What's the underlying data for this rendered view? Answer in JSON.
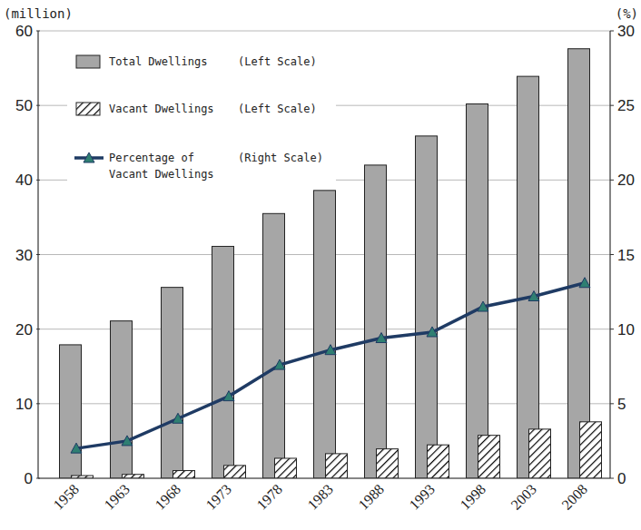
{
  "chart_data": {
    "type": "bar",
    "y_label": "(million)",
    "y2_label": "(%)",
    "categories": [
      "1958",
      "1963",
      "1968",
      "1973",
      "1978",
      "1983",
      "1988",
      "1993",
      "1998",
      "2003",
      "2008"
    ],
    "series": [
      {
        "name": "Total Dwellings",
        "type": "bar",
        "color": "#a6a6a6",
        "values": [
          17.9,
          21.1,
          25.6,
          31.1,
          35.5,
          38.6,
          42.0,
          45.9,
          50.2,
          53.9,
          57.6
        ]
      },
      {
        "name": "Vacant  Dwellings",
        "type": "bar",
        "color": "#000000",
        "line_style": "hatched",
        "values": [
          0.36,
          0.52,
          1.03,
          1.72,
          2.68,
          3.3,
          3.94,
          4.48,
          5.76,
          6.59,
          7.57
        ]
      },
      {
        "name": "Percentage of Vacant  Dwellings",
        "type": "line",
        "axis": "y2",
        "color": "#1f3b64",
        "marker": "triangle",
        "values": [
          2.0,
          2.5,
          4.0,
          5.5,
          7.6,
          8.6,
          9.4,
          9.8,
          11.5,
          12.2,
          13.1
        ]
      }
    ],
    "legend_notes": [
      "(Left Scale)",
      "(Left Scale)",
      "(Right Scale)"
    ],
    "ylim": [
      0,
      60
    ],
    "yticks": [
      0,
      10,
      20,
      30,
      40,
      50,
      60
    ],
    "y2lim": [
      0,
      30
    ],
    "y2ticks": [
      0,
      5,
      10,
      15,
      20,
      25,
      30
    ],
    "grid": true,
    "legend": "upper-left"
  }
}
